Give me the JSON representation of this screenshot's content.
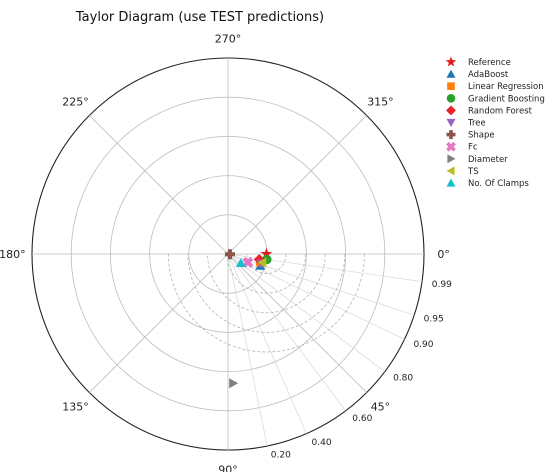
{
  "chart_data": {
    "type": "taylor",
    "title": "Taylor Diagram (use TEST predictions)",
    "angle_labels": [
      {
        "text": "0°",
        "angle": 0
      },
      {
        "text": "45°",
        "angle": 45
      },
      {
        "text": "90°",
        "angle": 90
      },
      {
        "text": "135°",
        "angle": 135
      },
      {
        "text": "180°",
        "angle": 180
      },
      {
        "text": "225°",
        "angle": 225
      },
      {
        "text": "270°",
        "angle": 270
      },
      {
        "text": "315°",
        "angle": 315
      }
    ],
    "correlation_labels": [
      "0.99",
      "0.95",
      "0.90",
      "0.80",
      "0.60",
      "0.40",
      "0.20"
    ],
    "correlation_values": [
      0.99,
      0.95,
      0.9,
      0.8,
      0.6,
      0.4,
      0.2
    ],
    "radial_range": [
      0,
      1
    ],
    "radial_rings": [
      0.2,
      0.4,
      0.6,
      0.8,
      1.0
    ],
    "rmsd_contours": [
      0.1,
      0.2,
      0.3,
      0.4,
      0.5
    ],
    "legend_position": "right",
    "grid": true,
    "series": [
      {
        "name": "Reference",
        "marker": "star",
        "color": "#e41a1c",
        "corr": 1.0,
        "std": 0.196
      },
      {
        "name": "AdaBoost",
        "marker": "triangle-up",
        "color": "#1f77b4",
        "corr": 0.94,
        "std": 0.175
      },
      {
        "name": "Linear Regression",
        "marker": "square",
        "color": "#ff7f0e",
        "corr": 0.97,
        "std": 0.17
      },
      {
        "name": "Gradient Boosting",
        "marker": "circle",
        "color": "#2ca02c",
        "corr": 0.99,
        "std": 0.2
      },
      {
        "name": "Random Forest",
        "marker": "diamond",
        "color": "#e8262a",
        "corr": 0.985,
        "std": 0.162
      },
      {
        "name": "Tree",
        "marker": "triangle-down",
        "color": "#9467bd",
        "corr": 0.96,
        "std": 0.178
      },
      {
        "name": "Shape",
        "marker": "plus",
        "color": "#8c564b",
        "corr": 0.99,
        "std": 0.01
      },
      {
        "name": "Fc",
        "marker": "x",
        "color": "#e377c2",
        "corr": 0.92,
        "std": 0.11
      },
      {
        "name": "Diameter",
        "marker": "triangle-right",
        "color": "#7f7f7f",
        "corr": 0.04,
        "std": 0.66
      },
      {
        "name": "TS",
        "marker": "triangle-left",
        "color": "#bcbd22",
        "corr": 0.97,
        "std": 0.18
      },
      {
        "name": "No. Of Clamps",
        "marker": "triangle-up",
        "color": "#17becf",
        "corr": 0.82,
        "std": 0.08
      }
    ]
  }
}
